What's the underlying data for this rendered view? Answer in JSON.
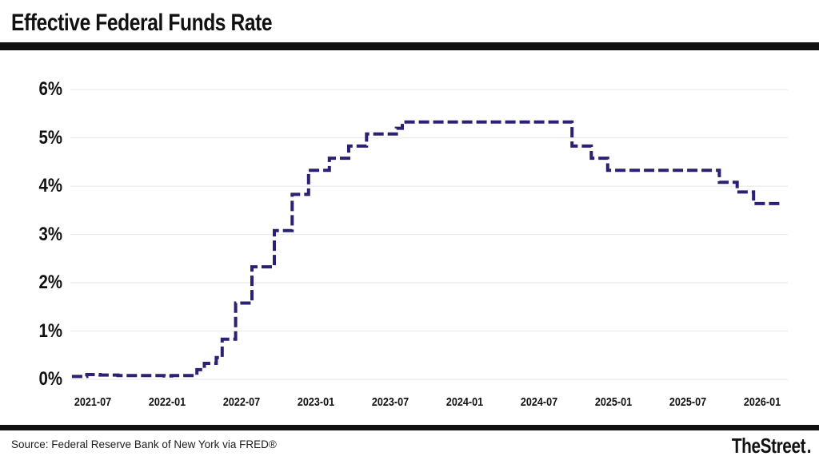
{
  "header": {
    "title": "Effective Federal Funds Rate"
  },
  "footer": {
    "source": "Source: Federal Reserve Bank of New York via FRED®",
    "brand": "TheStreet",
    "brand_dot": "."
  },
  "chart_data": {
    "type": "line",
    "line_style": "dashed-step",
    "title": "Effective Federal Funds Rate",
    "xlabel": "",
    "ylabel": "",
    "unit": "%",
    "grid": "horizontal-only",
    "legend": "none",
    "x_tick_labels": [
      "2021-07",
      "2022-01",
      "2022-07",
      "2023-01",
      "2023-07",
      "2024-01",
      "2024-07",
      "2025-01",
      "2025-07",
      "2026-01"
    ],
    "x_tick_values": [
      2021.5,
      2022.0,
      2022.5,
      2023.0,
      2023.5,
      2024.0,
      2024.5,
      2025.0,
      2025.5,
      2026.0
    ],
    "y_tick_labels": [
      "0%",
      "1%",
      "2%",
      "3%",
      "4%",
      "5%",
      "6%"
    ],
    "y_tick_values": [
      0,
      1,
      2,
      3,
      4,
      5,
      6
    ],
    "xlim": [
      2021.35,
      2026.17
    ],
    "ylim": [
      0,
      6.4
    ],
    "colors": {
      "line": "#2a2173",
      "grid": "#ebebeb",
      "text": "#111111",
      "background": "#ffffff",
      "rules": "#111111"
    },
    "series": [
      {
        "name": "Effective Federal Funds Rate (%)",
        "points": [
          [
            2021.36,
            0.06
          ],
          [
            2021.46,
            0.1
          ],
          [
            2021.55,
            0.09
          ],
          [
            2021.67,
            0.08
          ],
          [
            2021.98,
            0.07
          ],
          [
            2022.03,
            0.08
          ],
          [
            2022.2,
            0.2
          ],
          [
            2022.25,
            0.33
          ],
          [
            2022.33,
            0.45
          ],
          [
            2022.37,
            0.83
          ],
          [
            2022.46,
            1.58
          ],
          [
            2022.57,
            2.33
          ],
          [
            2022.72,
            3.08
          ],
          [
            2022.84,
            3.83
          ],
          [
            2022.95,
            4.33
          ],
          [
            2023.09,
            4.58
          ],
          [
            2023.22,
            4.83
          ],
          [
            2023.34,
            5.08
          ],
          [
            2023.54,
            5.2
          ],
          [
            2023.58,
            5.33
          ],
          [
            2024.72,
            4.83
          ],
          [
            2024.85,
            4.58
          ],
          [
            2024.96,
            4.33
          ],
          [
            2025.71,
            4.08
          ],
          [
            2025.83,
            3.88
          ],
          [
            2025.94,
            3.64
          ],
          [
            2026.13,
            3.64
          ]
        ]
      }
    ]
  }
}
